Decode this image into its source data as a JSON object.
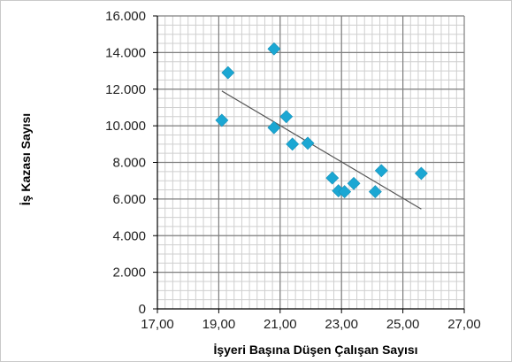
{
  "chart_data": {
    "type": "scatter",
    "xlabel": "İşyeri Başına Düşen Çalışan Sayısı",
    "ylabel": "İş Kazası Sayısı",
    "xlim": [
      17,
      27
    ],
    "ylim": [
      0,
      16000
    ],
    "x_major_step": 2,
    "x_minor_step": 0.25,
    "y_major_step": 2000,
    "y_minor_step": 500,
    "x_tick_labels": [
      "17,00",
      "19,00",
      "21,00",
      "23,00",
      "25,00",
      "27,00"
    ],
    "y_tick_labels": [
      "0",
      "2.000",
      "4.000",
      "6.000",
      "8.000",
      "10.000",
      "12.000",
      "14.000",
      "16.000"
    ],
    "grid": true,
    "marker": "diamond",
    "series": [
      {
        "points": [
          {
            "x": 19.1,
            "y": 10300
          },
          {
            "x": 19.3,
            "y": 12900
          },
          {
            "x": 20.8,
            "y": 14200
          },
          {
            "x": 20.8,
            "y": 9900
          },
          {
            "x": 21.2,
            "y": 10500
          },
          {
            "x": 21.4,
            "y": 9000
          },
          {
            "x": 21.9,
            "y": 9050
          },
          {
            "x": 22.7,
            "y": 7150
          },
          {
            "x": 22.9,
            "y": 6450
          },
          {
            "x": 23.1,
            "y": 6400
          },
          {
            "x": 23.4,
            "y": 6850
          },
          {
            "x": 24.1,
            "y": 6400
          },
          {
            "x": 24.3,
            "y": 7550
          },
          {
            "x": 25.6,
            "y": 7400
          }
        ]
      }
    ],
    "trendline": {
      "x": [
        19.1,
        25.6
      ],
      "y": [
        11900,
        5450
      ]
    },
    "colors": {
      "marker": "#1ba7d3",
      "trendline": "#555555",
      "minor_grid": "#cfcfcf",
      "major_grid": "#7f7f7f",
      "axis": "#000000"
    }
  }
}
